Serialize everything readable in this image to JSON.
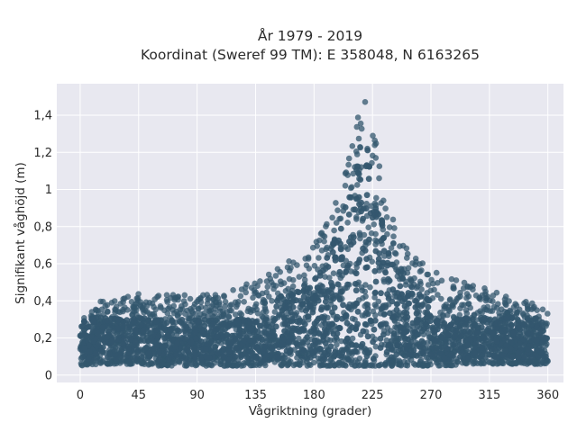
{
  "chart_data": {
    "type": "scatter",
    "title_line1": "År 1979 - 2019",
    "title_line2": "Koordinat (Sweref 99 TM): E 358048, N 6163265",
    "xlabel": "Vågriktning (grader)",
    "ylabel": "Signifikant våghöjd (m)",
    "xlim": [
      -18,
      372
    ],
    "ylim": [
      -0.04,
      1.57
    ],
    "x_ticks": [
      0,
      45,
      90,
      135,
      180,
      225,
      270,
      315,
      360
    ],
    "x_tick_labels": [
      "0",
      "45",
      "90",
      "135",
      "180",
      "225",
      "270",
      "315",
      "360"
    ],
    "y_ticks": [
      0,
      0.2,
      0.4,
      0.6,
      0.8,
      1,
      1.2,
      1.4
    ],
    "y_tick_labels": [
      "0",
      "0,2",
      "0,4",
      "0,6",
      "0,8",
      "1",
      "1,2",
      "1,4"
    ],
    "grid": true,
    "legend": "none",
    "colors": {
      "marker": "#33576e",
      "plot_bg": "#e8e8f0",
      "grid": "#ffffff"
    },
    "envelope": {
      "x": [
        0,
        15,
        30,
        45,
        60,
        75,
        90,
        105,
        120,
        135,
        150,
        165,
        180,
        190,
        200,
        210,
        215,
        220,
        225,
        230,
        240,
        250,
        260,
        270,
        285,
        300,
        315,
        330,
        345,
        360
      ],
      "y_min": [
        0.05,
        0.06,
        0.06,
        0.06,
        0.05,
        0.05,
        0.05,
        0.05,
        0.05,
        0.05,
        0.05,
        0.05,
        0.05,
        0.05,
        0.05,
        0.05,
        0.05,
        0.05,
        0.05,
        0.05,
        0.05,
        0.05,
        0.05,
        0.05,
        0.05,
        0.06,
        0.06,
        0.06,
        0.06,
        0.06
      ],
      "y_max": [
        0.36,
        0.4,
        0.42,
        0.45,
        0.43,
        0.44,
        0.43,
        0.44,
        0.48,
        0.52,
        0.58,
        0.63,
        0.7,
        0.82,
        1.0,
        1.3,
        1.5,
        1.5,
        1.38,
        1.15,
        0.85,
        0.72,
        0.62,
        0.57,
        0.52,
        0.5,
        0.46,
        0.42,
        0.4,
        0.36
      ]
    }
  }
}
